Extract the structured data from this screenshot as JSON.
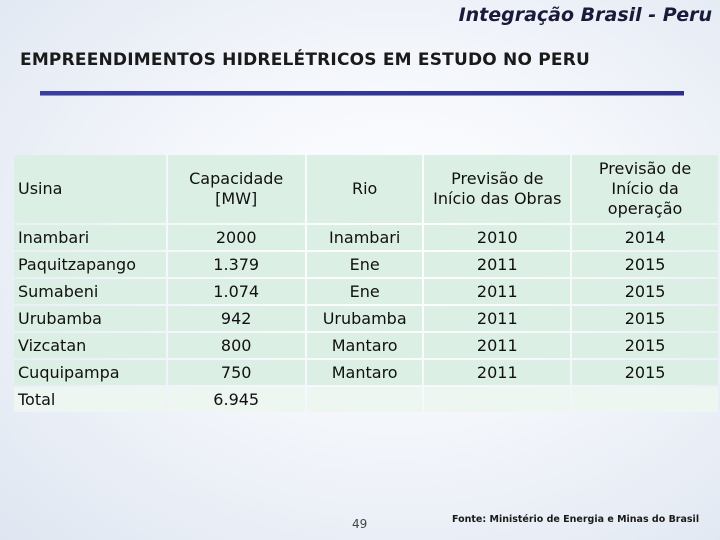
{
  "header": {
    "title": "Integração Brasil - Peru",
    "heading": "EMPREENDIMENTOS HIDRELÉTRICOS EM ESTUDO NO PERU"
  },
  "table": {
    "columns": [
      "Usina",
      "Capacidade [MW]",
      "Rio",
      "Previsão de Início das Obras",
      "Previsão de Início da operação"
    ],
    "rows": [
      [
        "Inambari",
        "2000",
        "Inambari",
        "2010",
        "2014"
      ],
      [
        "Paquitzapango",
        "1.379",
        "Ene",
        "2011",
        "2015"
      ],
      [
        "Sumabeni",
        "1.074",
        "Ene",
        "2011",
        "2015"
      ],
      [
        "Urubamba",
        "942",
        "Urubamba",
        "2011",
        "2015"
      ],
      [
        "Vizcatan",
        "800",
        "Mantaro",
        "2011",
        "2015"
      ],
      [
        "Cuquipampa",
        "750",
        "Mantaro",
        "2011",
        "2015"
      ]
    ],
    "total": [
      "Total",
      "6.945",
      "",
      "",
      ""
    ]
  },
  "footer": {
    "page_number": "49",
    "source": "Fonte: Ministério de Energia e Minas do Brasil"
  },
  "colors": {
    "cell_background": "#dcefe4",
    "rule": "#2d2f8a"
  }
}
